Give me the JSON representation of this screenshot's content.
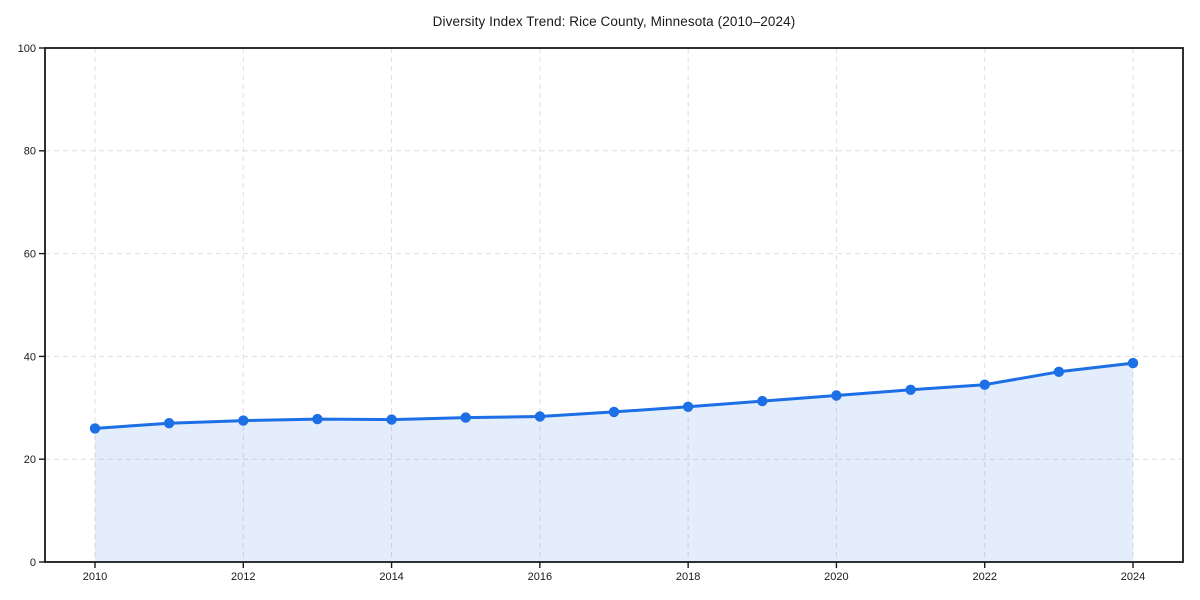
{
  "page": {
    "background_color": "#ffffff"
  },
  "chart_data": {
    "type": "area",
    "title": "Diversity Index Trend: Rice County, Minnesota (2010–2024)",
    "x": [
      2010,
      2011,
      2012,
      2013,
      2014,
      2015,
      2016,
      2017,
      2018,
      2019,
      2020,
      2021,
      2022,
      2023,
      2024
    ],
    "series": [
      {
        "name": "Diversity Index",
        "values": [
          26.0,
          27.0,
          27.5,
          27.8,
          27.7,
          28.1,
          28.3,
          29.2,
          30.2,
          31.3,
          32.4,
          33.5,
          34.5,
          37.0,
          38.7
        ]
      }
    ],
    "xlabel": "",
    "ylabel": "",
    "ylim": [
      0,
      100
    ],
    "yticks": [
      0,
      20,
      40,
      60,
      80,
      100
    ],
    "xticks": [
      2010,
      2012,
      2014,
      2016,
      2018,
      2020,
      2022,
      2024
    ],
    "grid": "dashed-both-axes",
    "legend_position": "none",
    "marker": "circle",
    "colors": {
      "line": "#1d6fe5",
      "marker": "#1d6fe5",
      "area_fill": "rgba(29,111,229,0.12)",
      "grid": "#dedede",
      "spine": "#1a1a1a",
      "tick_text": "#1a1a1a",
      "title_text": "#1a1a1a"
    }
  }
}
